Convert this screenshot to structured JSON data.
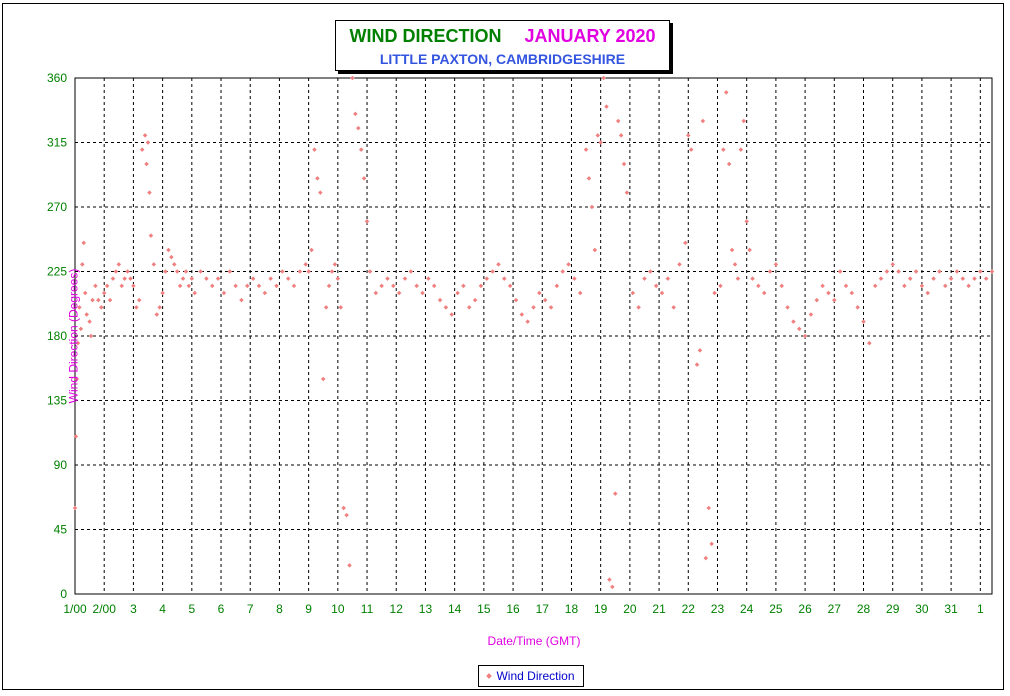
{
  "chart_data": {
    "type": "scatter",
    "title": "WIND DIRECTION",
    "title_date": "JANUARY 2020",
    "subtitle": "LITTLE PAXTON, CAMBRIDGESHIRE",
    "xlabel": "Date/Time (GMT)",
    "ylabel": "Wind Direction (Degrees)",
    "ylim": [
      0,
      360
    ],
    "yticks": [
      "0",
      "45",
      "90",
      "135",
      "180",
      "225",
      "270",
      "315",
      "360"
    ],
    "xlim": [
      0,
      31.4
    ],
    "xticks": [
      "1/00",
      "2/00",
      "3",
      "4",
      "5",
      "6",
      "7",
      "8",
      "9",
      "10",
      "11",
      "12",
      "13",
      "14",
      "15",
      "16",
      "17",
      "18",
      "19",
      "20",
      "21",
      "22",
      "23",
      "24",
      "25",
      "26",
      "27",
      "28",
      "29",
      "30",
      "31",
      "1"
    ],
    "grid": true,
    "legend": "bottom-center",
    "series": [
      {
        "name": "Wind Direction",
        "color": "#f08080",
        "marker": "diamond",
        "points": [
          [
            0.0,
            60
          ],
          [
            0.03,
            110
          ],
          [
            0.06,
            150
          ],
          [
            0.1,
            175
          ],
          [
            0.15,
            200
          ],
          [
            0.2,
            185
          ],
          [
            0.25,
            230
          ],
          [
            0.3,
            245
          ],
          [
            0.35,
            210
          ],
          [
            0.4,
            195
          ],
          [
            0.5,
            190
          ],
          [
            0.55,
            180
          ],
          [
            0.6,
            205
          ],
          [
            0.7,
            215
          ],
          [
            0.8,
            205
          ],
          [
            0.9,
            200
          ],
          [
            1.0,
            210
          ],
          [
            1.1,
            215
          ],
          [
            1.2,
            205
          ],
          [
            1.3,
            220
          ],
          [
            1.4,
            225
          ],
          [
            1.5,
            230
          ],
          [
            1.6,
            215
          ],
          [
            1.7,
            220
          ],
          [
            1.8,
            225
          ],
          [
            1.9,
            220
          ],
          [
            2.0,
            215
          ],
          [
            2.1,
            200
          ],
          [
            2.2,
            205
          ],
          [
            2.3,
            310
          ],
          [
            2.4,
            320
          ],
          [
            2.45,
            300
          ],
          [
            2.5,
            315
          ],
          [
            2.55,
            280
          ],
          [
            2.6,
            250
          ],
          [
            2.7,
            230
          ],
          [
            2.8,
            195
          ],
          [
            2.9,
            200
          ],
          [
            3.0,
            210
          ],
          [
            3.1,
            225
          ],
          [
            3.2,
            240
          ],
          [
            3.3,
            235
          ],
          [
            3.4,
            230
          ],
          [
            3.5,
            225
          ],
          [
            3.6,
            215
          ],
          [
            3.7,
            220
          ],
          [
            3.8,
            225
          ],
          [
            3.9,
            215
          ],
          [
            4.0,
            220
          ],
          [
            4.1,
            210
          ],
          [
            4.3,
            225
          ],
          [
            4.5,
            220
          ],
          [
            4.7,
            215
          ],
          [
            4.9,
            220
          ],
          [
            5.1,
            210
          ],
          [
            5.3,
            225
          ],
          [
            5.5,
            215
          ],
          [
            5.7,
            205
          ],
          [
            5.9,
            215
          ],
          [
            6.1,
            220
          ],
          [
            6.3,
            215
          ],
          [
            6.5,
            210
          ],
          [
            6.7,
            220
          ],
          [
            6.9,
            215
          ],
          [
            7.1,
            225
          ],
          [
            7.3,
            220
          ],
          [
            7.5,
            215
          ],
          [
            7.7,
            225
          ],
          [
            7.9,
            230
          ],
          [
            8.0,
            225
          ],
          [
            8.1,
            240
          ],
          [
            8.2,
            310
          ],
          [
            8.3,
            290
          ],
          [
            8.4,
            280
          ],
          [
            8.5,
            150
          ],
          [
            8.6,
            200
          ],
          [
            8.7,
            215
          ],
          [
            8.8,
            225
          ],
          [
            8.9,
            230
          ],
          [
            9.0,
            220
          ],
          [
            9.1,
            200
          ],
          [
            9.2,
            60
          ],
          [
            9.3,
            55
          ],
          [
            9.4,
            20
          ],
          [
            9.5,
            360
          ],
          [
            9.6,
            335
          ],
          [
            9.7,
            325
          ],
          [
            9.8,
            310
          ],
          [
            9.9,
            290
          ],
          [
            10.0,
            260
          ],
          [
            10.1,
            225
          ],
          [
            10.3,
            210
          ],
          [
            10.5,
            215
          ],
          [
            10.7,
            220
          ],
          [
            10.9,
            215
          ],
          [
            11.1,
            210
          ],
          [
            11.3,
            220
          ],
          [
            11.5,
            225
          ],
          [
            11.7,
            215
          ],
          [
            11.9,
            210
          ],
          [
            12.1,
            220
          ],
          [
            12.3,
            215
          ],
          [
            12.5,
            205
          ],
          [
            12.7,
            200
          ],
          [
            12.9,
            195
          ],
          [
            13.1,
            210
          ],
          [
            13.3,
            215
          ],
          [
            13.5,
            200
          ],
          [
            13.7,
            205
          ],
          [
            13.9,
            215
          ],
          [
            14.1,
            220
          ],
          [
            14.3,
            225
          ],
          [
            14.5,
            230
          ],
          [
            14.7,
            220
          ],
          [
            14.9,
            215
          ],
          [
            15.1,
            205
          ],
          [
            15.3,
            195
          ],
          [
            15.5,
            190
          ],
          [
            15.7,
            200
          ],
          [
            15.9,
            210
          ],
          [
            16.1,
            205
          ],
          [
            16.3,
            200
          ],
          [
            16.5,
            215
          ],
          [
            16.7,
            225
          ],
          [
            16.9,
            230
          ],
          [
            17.1,
            220
          ],
          [
            17.3,
            210
          ],
          [
            17.5,
            310
          ],
          [
            17.6,
            290
          ],
          [
            17.7,
            270
          ],
          [
            17.8,
            240
          ],
          [
            17.9,
            320
          ],
          [
            18.0,
            315
          ],
          [
            18.1,
            360
          ],
          [
            18.2,
            340
          ],
          [
            18.3,
            10
          ],
          [
            18.4,
            5
          ],
          [
            18.5,
            70
          ],
          [
            18.6,
            330
          ],
          [
            18.7,
            320
          ],
          [
            18.8,
            300
          ],
          [
            18.9,
            280
          ],
          [
            19.1,
            210
          ],
          [
            19.3,
            200
          ],
          [
            19.5,
            220
          ],
          [
            19.7,
            225
          ],
          [
            19.9,
            215
          ],
          [
            20.1,
            210
          ],
          [
            20.3,
            220
          ],
          [
            20.5,
            200
          ],
          [
            20.7,
            230
          ],
          [
            20.9,
            245
          ],
          [
            21.0,
            320
          ],
          [
            21.1,
            310
          ],
          [
            21.3,
            160
          ],
          [
            21.4,
            170
          ],
          [
            21.5,
            330
          ],
          [
            21.6,
            25
          ],
          [
            21.7,
            60
          ],
          [
            21.8,
            35
          ],
          [
            21.9,
            210
          ],
          [
            22.1,
            215
          ],
          [
            22.2,
            310
          ],
          [
            22.3,
            350
          ],
          [
            22.4,
            300
          ],
          [
            22.5,
            240
          ],
          [
            22.6,
            230
          ],
          [
            22.7,
            220
          ],
          [
            22.8,
            310
          ],
          [
            22.9,
            330
          ],
          [
            23.0,
            260
          ],
          [
            23.1,
            240
          ],
          [
            23.2,
            220
          ],
          [
            23.4,
            215
          ],
          [
            23.6,
            210
          ],
          [
            23.8,
            225
          ],
          [
            24.0,
            230
          ],
          [
            24.2,
            215
          ],
          [
            24.4,
            200
          ],
          [
            24.6,
            190
          ],
          [
            24.8,
            185
          ],
          [
            25.0,
            180
          ],
          [
            25.2,
            195
          ],
          [
            25.4,
            205
          ],
          [
            25.6,
            215
          ],
          [
            25.8,
            210
          ],
          [
            26.0,
            205
          ],
          [
            26.2,
            225
          ],
          [
            26.4,
            215
          ],
          [
            26.6,
            210
          ],
          [
            26.8,
            200
          ],
          [
            27.0,
            190
          ],
          [
            27.2,
            175
          ],
          [
            27.4,
            215
          ],
          [
            27.6,
            220
          ],
          [
            27.8,
            225
          ],
          [
            28.0,
            230
          ],
          [
            28.2,
            225
          ],
          [
            28.4,
            215
          ],
          [
            28.6,
            220
          ],
          [
            28.8,
            225
          ],
          [
            29.0,
            215
          ],
          [
            29.2,
            210
          ],
          [
            29.4,
            220
          ],
          [
            29.6,
            225
          ],
          [
            29.8,
            215
          ],
          [
            30.0,
            220
          ],
          [
            30.2,
            225
          ],
          [
            30.4,
            220
          ],
          [
            30.6,
            215
          ],
          [
            30.8,
            220
          ],
          [
            31.0,
            225
          ],
          [
            31.2,
            220
          ],
          [
            31.4,
            225
          ]
        ]
      }
    ]
  }
}
